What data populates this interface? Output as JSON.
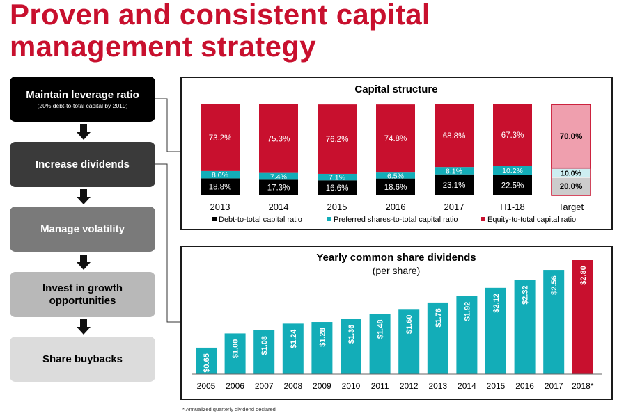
{
  "page": {
    "title_line1": "Proven and consistent capital",
    "title_line2": "management strategy",
    "footnote": "* Annualized quarterly dividend declared"
  },
  "steps": [
    {
      "label": "Maintain leverage ratio",
      "sub": "(20% debt-to-total capital by 2019)",
      "color": "#000000",
      "text_color": "#ffffff"
    },
    {
      "label": "Increase dividends",
      "sub": "",
      "color": "#3a3a3a",
      "text_color": "#ffffff"
    },
    {
      "label": "Manage volatility",
      "sub": "",
      "color": "#7a7a7a",
      "text_color": "#ffffff"
    },
    {
      "label": "Invest in growth opportunities",
      "sub": "",
      "color": "#b8b8b8",
      "text_color": "#000000"
    },
    {
      "label": "Share buybacks",
      "sub": "",
      "color": "#dcdcdc",
      "text_color": "#000000"
    }
  ],
  "chart_data": [
    {
      "type": "bar",
      "stacked": true,
      "title": "Capital structure",
      "categories": [
        "2013",
        "2014",
        "2015",
        "2016",
        "2017",
        "H1-18",
        "Target"
      ],
      "series": [
        {
          "name": "Debt-to-total capital ratio",
          "color": "#000000",
          "values": [
            18.8,
            17.3,
            16.6,
            18.6,
            23.1,
            22.5,
            20.0
          ],
          "labels": [
            "18.8%",
            "17.3%",
            "16.6%",
            "18.6%",
            "23.1%",
            "22.5%",
            "20.0%"
          ]
        },
        {
          "name": "Preferred shares-to-total capital ratio",
          "color": "#13adb8",
          "values": [
            8.0,
            7.4,
            7.1,
            6.5,
            8.1,
            10.2,
            10.0
          ],
          "labels": [
            "8.0%",
            "7.4%",
            "7.1%",
            "6.5%",
            "8.1%",
            "10.2%",
            "10.0%"
          ]
        },
        {
          "name": "Equity-to-total capital ratio",
          "color": "#c8102e",
          "values": [
            73.2,
            75.3,
            76.2,
            74.8,
            68.8,
            67.3,
            70.0
          ],
          "labels": [
            "73.2%",
            "75.3%",
            "76.2%",
            "74.8%",
            "68.8%",
            "67.3%",
            "70.0%"
          ]
        }
      ],
      "target_colors": [
        "#cccccc",
        "#cdeef1",
        "#ef9fae"
      ],
      "ylim": [
        0,
        100
      ],
      "legend_position": "bottom"
    },
    {
      "type": "bar",
      "title": "Yearly common share dividends",
      "subtitle": "(per share)",
      "categories": [
        "2005",
        "2006",
        "2007",
        "2008",
        "2009",
        "2010",
        "2011",
        "2012",
        "2013",
        "2014",
        "2015",
        "2016",
        "2017",
        "2018*"
      ],
      "values": [
        0.65,
        1.0,
        1.08,
        1.24,
        1.28,
        1.36,
        1.48,
        1.6,
        1.76,
        1.92,
        2.12,
        2.32,
        2.56,
        2.8
      ],
      "labels": [
        "$0.65",
        "$1.00",
        "$1.08",
        "$1.24",
        "$1.28",
        "$1.36",
        "$1.48",
        "$1.60",
        "$1.76",
        "$1.92",
        "$2.12",
        "$2.32",
        "$2.56",
        "$2.80"
      ],
      "colors": {
        "default": "#13adb8",
        "highlight": "#c8102e"
      },
      "ylim": [
        0,
        2.8
      ]
    }
  ]
}
